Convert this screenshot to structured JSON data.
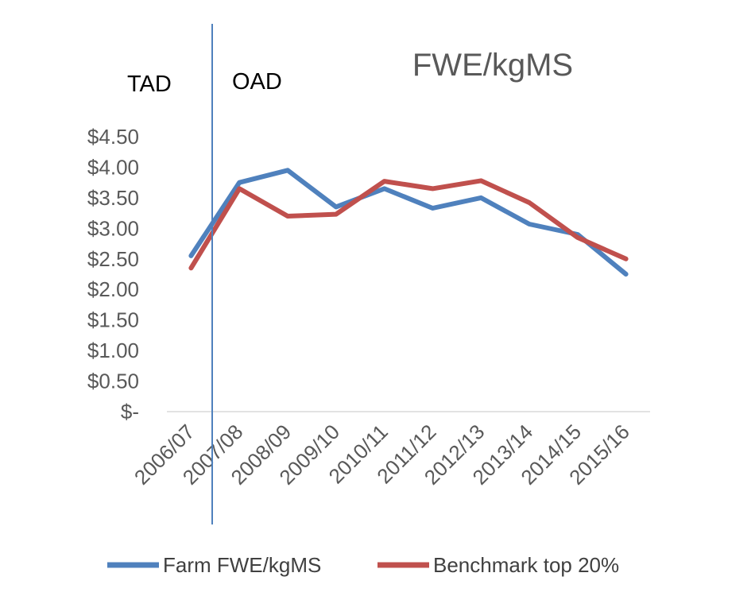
{
  "chart_data": {
    "type": "line",
    "title": "FWE/kgMS",
    "categories": [
      "2006/07",
      "2007/08",
      "2008/09",
      "2009/10",
      "2010/11",
      "2011/12",
      "2012/13",
      "2013/14",
      "2014/15",
      "2015/16"
    ],
    "series": [
      {
        "name": "Farm FWE/kgMS",
        "color": "#4f81bd",
        "values": [
          2.55,
          3.75,
          3.95,
          3.35,
          3.65,
          3.33,
          3.5,
          3.07,
          2.9,
          2.25
        ]
      },
      {
        "name": "Benchmark top 20%",
        "color": "#c0504d",
        "values": [
          2.35,
          3.65,
          3.2,
          3.23,
          3.77,
          3.65,
          3.78,
          3.42,
          2.85,
          2.5
        ]
      }
    ],
    "yticks": [
      {
        "value": 0,
        "label": "$-"
      },
      {
        "value": 0.5,
        "label": "$0.50"
      },
      {
        "value": 1.0,
        "label": "$1.00"
      },
      {
        "value": 1.5,
        "label": "$1.50"
      },
      {
        "value": 2.0,
        "label": "$2.00"
      },
      {
        "value": 2.5,
        "label": "$2.50"
      },
      {
        "value": 3.0,
        "label": "$3.00"
      },
      {
        "value": 3.5,
        "label": "$3.50"
      },
      {
        "value": 4.0,
        "label": "$4.00"
      },
      {
        "value": 4.5,
        "label": "$4.50"
      }
    ],
    "ylim": [
      0,
      4.5
    ],
    "grid": false,
    "legend_position": "bottom",
    "annotations": {
      "left_label": "TAD",
      "right_label": "OAD",
      "divider_color": "#4f81bd"
    },
    "xlabel": "",
    "ylabel": ""
  }
}
